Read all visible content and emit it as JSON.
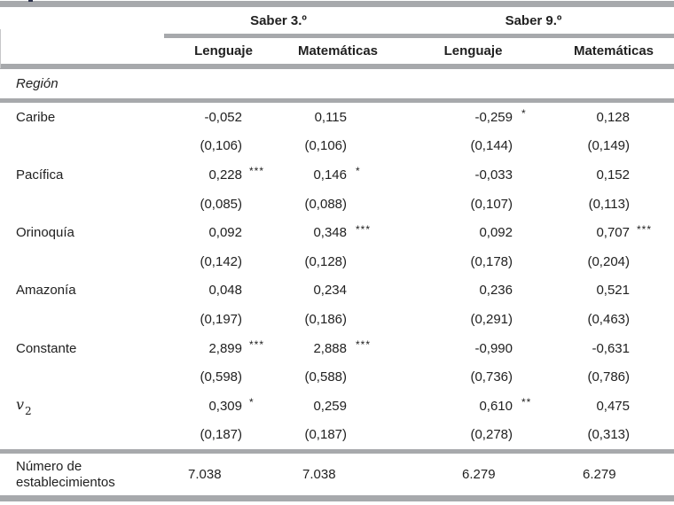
{
  "table": {
    "group_headers": [
      {
        "label": "Saber 3.º"
      },
      {
        "label": "Saber 9.º"
      }
    ],
    "column_headers": [
      "Lenguaje",
      "Matemáticas",
      "Lenguaje",
      "Matemáticas"
    ],
    "section_label": "Región",
    "rows": [
      {
        "label": "Caribe",
        "values": [
          "-0,052",
          "0,115",
          "-0,259",
          "0,128"
        ],
        "stars": [
          "",
          "",
          "*",
          ""
        ],
        "se": [
          "(0,106)",
          "(0,106)",
          "(0,144)",
          "(0,149)"
        ]
      },
      {
        "label": "Pacífica",
        "values": [
          "0,228",
          "0,146",
          "-0,033",
          "0,152"
        ],
        "stars": [
          "***",
          "*",
          "",
          ""
        ],
        "se": [
          "(0,085)",
          "(0,088)",
          "(0,107)",
          "(0,113)"
        ]
      },
      {
        "label": "Orinoquía",
        "values": [
          "0,092",
          "0,348",
          "0,092",
          "0,707"
        ],
        "stars": [
          "",
          "***",
          "",
          "***"
        ],
        "se": [
          "(0,142)",
          "(0,128)",
          "(0,178)",
          "(0,204)"
        ]
      },
      {
        "label": "Amazonía",
        "values": [
          "0,048",
          "0,234",
          "0,236",
          "0,521"
        ],
        "stars": [
          "",
          "",
          "",
          ""
        ],
        "se": [
          "(0,197)",
          "(0,186)",
          "(0,291)",
          "(0,463)"
        ]
      },
      {
        "label": "Constante",
        "values": [
          "2,899",
          "2,888",
          "-0,990",
          "-0,631"
        ],
        "stars": [
          "***",
          "***",
          "",
          ""
        ],
        "se": [
          "(0,598)",
          "(0,588)",
          "(0,736)",
          "(0,786)"
        ]
      },
      {
        "label": "v",
        "label_sub": "2",
        "label_math": true,
        "values": [
          "0,309",
          "0,259",
          "0,610",
          "0,475"
        ],
        "stars": [
          "*",
          "",
          "**",
          ""
        ],
        "se": [
          "(0,187)",
          "(0,187)",
          "(0,278)",
          "(0,313)"
        ]
      }
    ],
    "footer_row": {
      "label": "Número de establecimientos",
      "values": [
        "7.038",
        "7.038",
        "6.279",
        "6.279"
      ]
    }
  },
  "colors": {
    "rule_gray": "#a7a9ac",
    "text": "#212121"
  }
}
